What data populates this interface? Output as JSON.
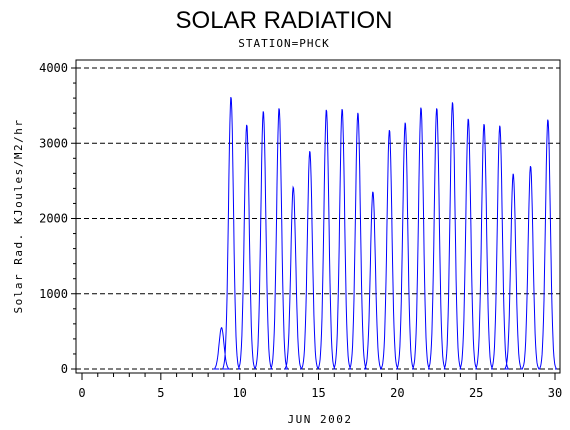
{
  "chart_data": {
    "type": "line",
    "title": "SOLAR RADIATION",
    "subtitle": "STATION=PHCK",
    "xlabel": "JUN 2002",
    "ylabel": "Solar Rad. KJoules/M2/hr",
    "xlim": [
      0,
      30
    ],
    "ylim": [
      0,
      4000
    ],
    "x_ticks": [
      "0",
      "5",
      "10",
      "15",
      "20",
      "25",
      "30"
    ],
    "y_ticks": [
      "0",
      "1000",
      "2000",
      "3000",
      "4000"
    ],
    "grid": "horizontal-dashed",
    "line_color": "#0000ff",
    "series": [
      {
        "daily_peaks": [
          {
            "day": 8.85,
            "value": 550
          },
          {
            "day": 9.45,
            "value": 3620
          },
          {
            "day": 10.45,
            "value": 3250
          },
          {
            "day": 11.5,
            "value": 3430
          },
          {
            "day": 12.5,
            "value": 3470
          },
          {
            "day": 13.4,
            "value": 2420
          },
          {
            "day": 14.45,
            "value": 2900
          },
          {
            "day": 15.5,
            "value": 3450
          },
          {
            "day": 16.5,
            "value": 3460
          },
          {
            "day": 17.5,
            "value": 3410
          },
          {
            "day": 18.45,
            "value": 2360
          },
          {
            "day": 19.5,
            "value": 3180
          },
          {
            "day": 20.5,
            "value": 3280
          },
          {
            "day": 21.5,
            "value": 3480
          },
          {
            "day": 22.5,
            "value": 3470
          },
          {
            "day": 23.5,
            "value": 3550
          },
          {
            "day": 24.5,
            "value": 3330
          },
          {
            "day": 25.5,
            "value": 3260
          },
          {
            "day": 26.5,
            "value": 3240
          },
          {
            "day": 27.35,
            "value": 2600
          },
          {
            "day": 28.45,
            "value": 2700
          },
          {
            "day": 29.55,
            "value": 3320
          }
        ]
      }
    ]
  }
}
